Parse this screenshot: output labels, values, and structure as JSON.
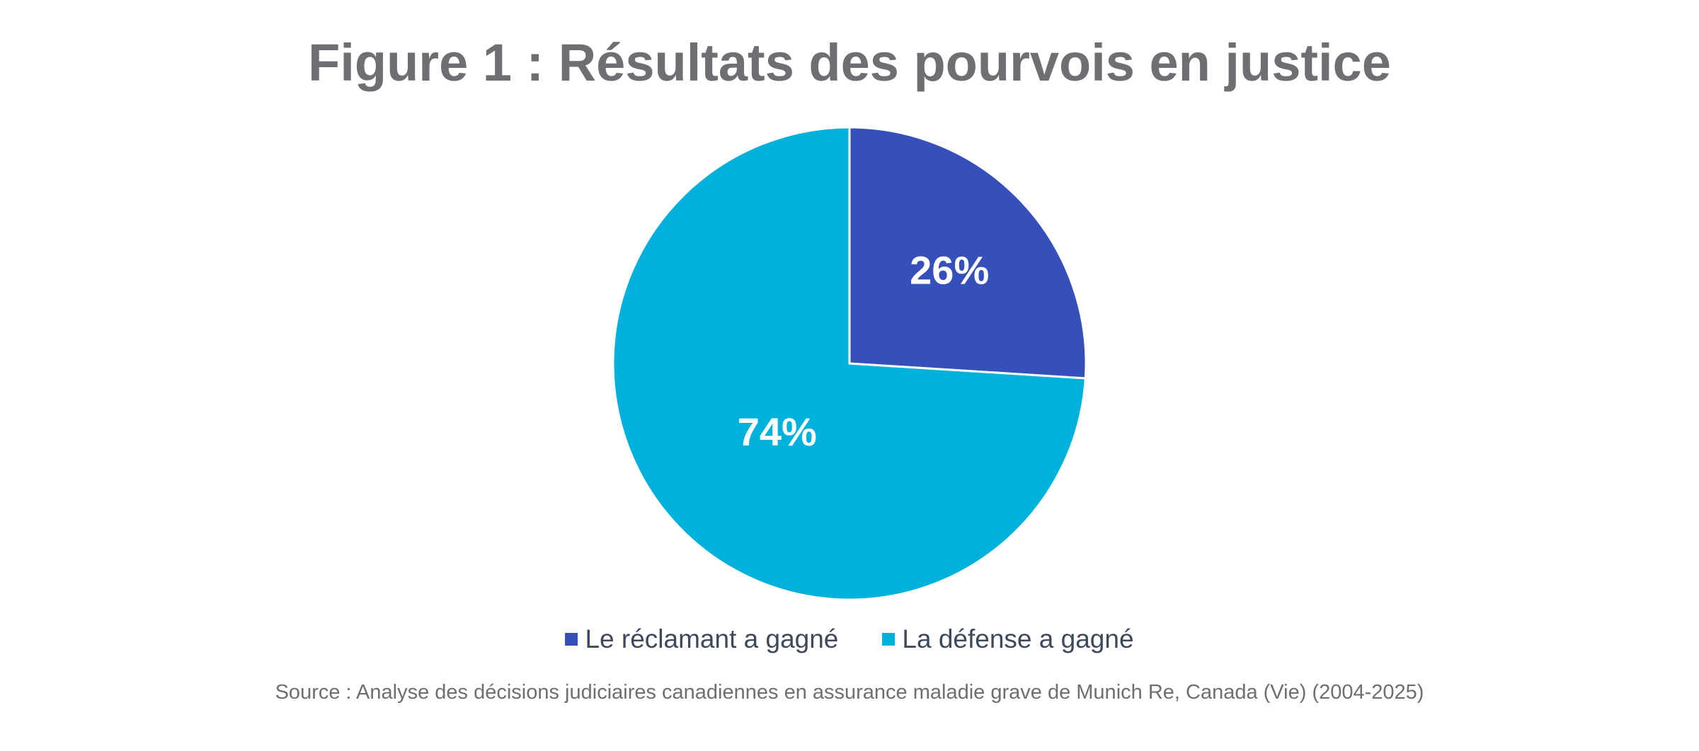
{
  "chart_data": {
    "type": "pie",
    "title": "Figure 1 : Résultats des pourvois en justice",
    "slices": [
      {
        "label": "Le réclamant a gagné",
        "value": 26,
        "display": "26%",
        "color": "#3550bb"
      },
      {
        "label": "La défense a gagné",
        "value": 74,
        "display": "74%",
        "color": "#00b2db"
      }
    ],
    "legend_position": "bottom",
    "source": "Source : Analyse des décisions judiciaires canadiennes en assurance maladie grave de Munich Re, Canada (Vie) (2004-2025)"
  }
}
